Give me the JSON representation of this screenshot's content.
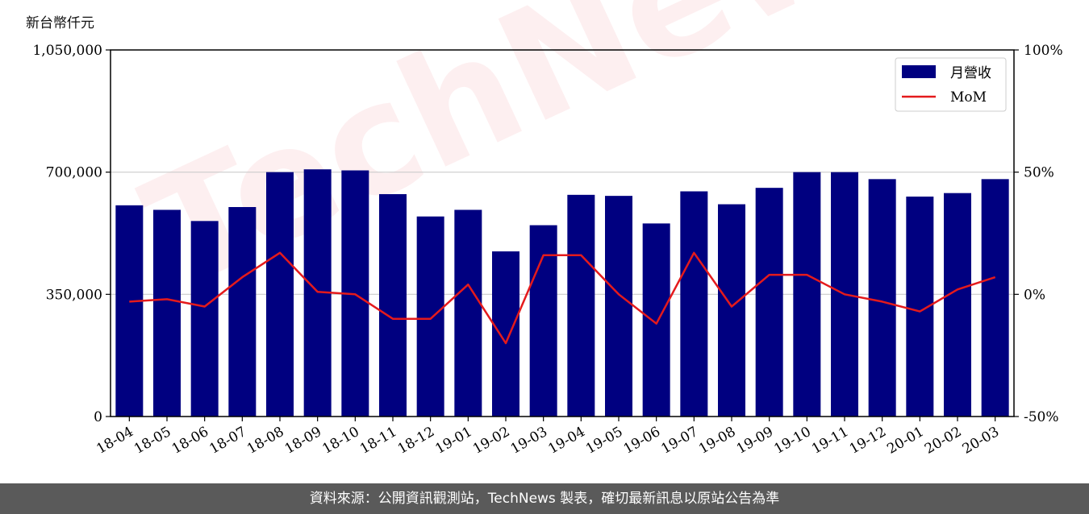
{
  "unit_label": "新台幣仟元",
  "watermark_text": "TechNews",
  "footer_text": "資料來源：公開資訊觀測站，TechNews 製表，確切最新訊息以原站公告為準",
  "colors": {
    "bar": "#000080",
    "line": "#e41a1c",
    "grid": "#cccccc",
    "footer_bg": "#5a5a5a"
  },
  "chart_data": {
    "type": "bar",
    "categories": [
      "18-04",
      "18-05",
      "18-06",
      "18-07",
      "18-08",
      "18-09",
      "18-10",
      "18-11",
      "18-12",
      "19-01",
      "19-02",
      "19-03",
      "19-04",
      "19-05",
      "19-06",
      "19-07",
      "19-08",
      "19-09",
      "19-10",
      "19-11",
      "19-12",
      "20-01",
      "20-02",
      "20-03"
    ],
    "series": [
      {
        "name": "月營收",
        "axis": "left",
        "type": "bar",
        "values": [
          605000,
          592000,
          560000,
          600000,
          700000,
          708000,
          705000,
          637000,
          573000,
          592000,
          473000,
          548000,
          635000,
          632000,
          553000,
          645000,
          608000,
          655000,
          700000,
          700000,
          680000,
          630000,
          640000,
          680000
        ]
      },
      {
        "name": "MoM",
        "axis": "right",
        "type": "line",
        "values": [
          -3,
          -2,
          -5,
          7,
          17,
          1,
          0,
          -10,
          -10,
          4,
          -20,
          16,
          16,
          0,
          -12,
          17,
          -5,
          8,
          8,
          0,
          -3,
          -7,
          2,
          7
        ]
      }
    ],
    "y_left": {
      "min": 0,
      "max": 1050000,
      "ticks": [
        0,
        350000,
        700000,
        1050000
      ],
      "tick_labels": [
        "0",
        "350,000",
        "700,000",
        "1,050,000"
      ]
    },
    "y_right": {
      "min": -50,
      "max": 100,
      "ticks": [
        -50,
        0,
        50,
        100
      ],
      "tick_labels": [
        "-50%",
        "0%",
        "50%",
        "100%"
      ]
    },
    "grid": "horizontal",
    "legend_position": "top-right"
  }
}
